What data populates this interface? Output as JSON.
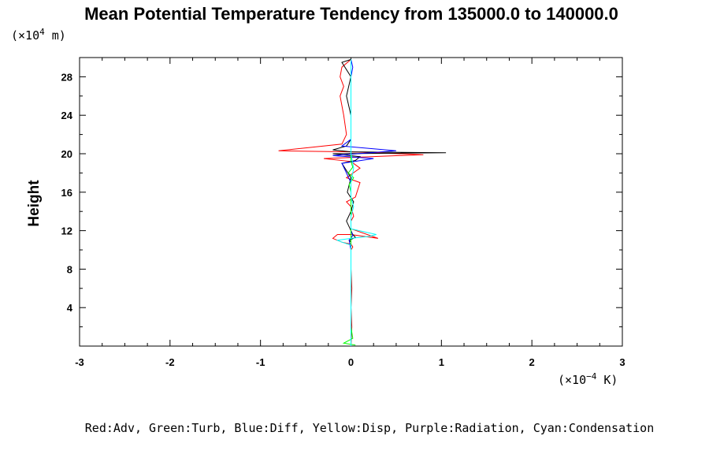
{
  "chart_data": {
    "type": "line",
    "title": "Mean Potential Temperature Tendency from 135000.0 to 140000.0",
    "y_unit_prefix": "(×10",
    "y_unit_exp": "4",
    "y_unit_suffix": " m)",
    "x_unit_prefix": "(×10",
    "x_unit_exp": "−4",
    "x_unit_suffix": " K)",
    "ylabel": "Height",
    "xlabel": "",
    "xlim": [
      -3,
      3
    ],
    "ylim": [
      0,
      30
    ],
    "x_ticks": [
      -3,
      -2,
      -1,
      0,
      1,
      2,
      3
    ],
    "x_tick_labels": [
      "-3",
      "-2",
      "-1",
      "0",
      "1",
      "2",
      "3"
    ],
    "y_ticks": [
      4,
      8,
      12,
      16,
      20,
      24,
      28
    ],
    "y_tick_labels": [
      "4",
      "8",
      "12",
      "16",
      "20",
      "24",
      "28"
    ],
    "grid": false,
    "legend_text": "Red:Adv, Green:Turb, Blue:Diff, Yellow:Disp, Purple:Radiation, Cyan:Condensation",
    "legend_placement": "bottom",
    "series": [
      {
        "color": "#ff0000",
        "x": [
          0.0,
          0.01,
          0.0,
          0.01,
          0.0,
          0.0,
          0.02,
          0.0,
          -0.1,
          -0.2,
          -0.15,
          0.0,
          0.3,
          0.0,
          0.0,
          0.03,
          0.0,
          -0.05,
          0.05,
          0.1,
          -0.05,
          0.1,
          0.0,
          -0.3,
          0.8,
          0.0,
          -0.8,
          -0.1,
          -0.05,
          -0.08,
          -0.1,
          -0.12,
          -0.08,
          -0.12,
          -0.1,
          0.0
        ],
        "y": [
          0.0,
          2.0,
          4.0,
          6.0,
          8.0,
          10.0,
          10.3,
          10.6,
          10.8,
          11.2,
          11.6,
          11.6,
          11.2,
          12.2,
          13.0,
          13.5,
          14.5,
          15.0,
          15.5,
          17.0,
          17.5,
          18.5,
          19.2,
          19.5,
          19.9,
          20.2,
          20.3,
          21.0,
          22.0,
          24.0,
          25.0,
          26.0,
          27.0,
          28.0,
          29.0,
          29.8
        ]
      },
      {
        "color": "#000000",
        "x": [
          0.0,
          0.0,
          0.0,
          0.0,
          0.0,
          -0.02,
          0.05,
          0.02,
          0.0,
          -0.05,
          0.0,
          0.03,
          -0.04,
          0.0,
          -0.1,
          0.05,
          0.1,
          -0.2,
          1.05,
          0.0,
          -0.2,
          -0.05,
          0.0,
          0.0,
          -0.05,
          0.0,
          -0.1,
          0.0
        ],
        "y": [
          0.0,
          4.0,
          8.0,
          10.0,
          10.8,
          11.0,
          11.3,
          11.6,
          12.0,
          13.0,
          14.0,
          15.0,
          16.0,
          17.5,
          19.0,
          19.3,
          19.7,
          20.0,
          20.1,
          20.2,
          20.4,
          20.8,
          21.5,
          24.0,
          26.0,
          28.0,
          29.5,
          29.8
        ]
      },
      {
        "color": "#0000ff",
        "x": [
          0.0,
          0.0,
          0.0,
          0.0,
          -0.02,
          0.02,
          0.0,
          0.0,
          0.0,
          -0.1,
          0.25,
          -0.2,
          0.5,
          -0.1,
          0.0,
          0.0,
          0.0,
          0.0,
          0.02,
          0.0
        ],
        "y": [
          0.0,
          4.0,
          8.0,
          10.0,
          11.0,
          11.5,
          12.0,
          14.0,
          17.0,
          19.0,
          19.5,
          19.8,
          20.3,
          20.8,
          21.5,
          24.0,
          26.0,
          28.0,
          29.0,
          29.8
        ]
      },
      {
        "color": "#00ff00",
        "x": [
          0.05,
          -0.08,
          0.02,
          0.0,
          0.0,
          0.0,
          0.0,
          0.0,
          0.0,
          -0.02,
          0.03,
          -0.03,
          0.02,
          0.0,
          0.0
        ],
        "y": [
          0.1,
          0.3,
          0.8,
          2.0,
          6.0,
          10.0,
          12.0,
          14.0,
          16.0,
          16.8,
          17.5,
          18.0,
          18.6,
          19.2,
          20.0
        ]
      },
      {
        "color": "#00ffff",
        "x": [
          0.0,
          0.0,
          0.0,
          0.0,
          0.0,
          -0.1,
          -0.15,
          0.0,
          0.2,
          0.28,
          0.0,
          0.0,
          0.03,
          0.0,
          0.0,
          0.03,
          0.0,
          0.0,
          0.0,
          0.0
        ],
        "y": [
          0.0,
          2.0,
          4.0,
          8.0,
          10.5,
          10.8,
          11.0,
          11.2,
          11.4,
          11.6,
          12.2,
          13.5,
          14.5,
          15.5,
          17.0,
          18.5,
          20.0,
          24.0,
          28.0,
          29.8
        ]
      }
    ]
  }
}
